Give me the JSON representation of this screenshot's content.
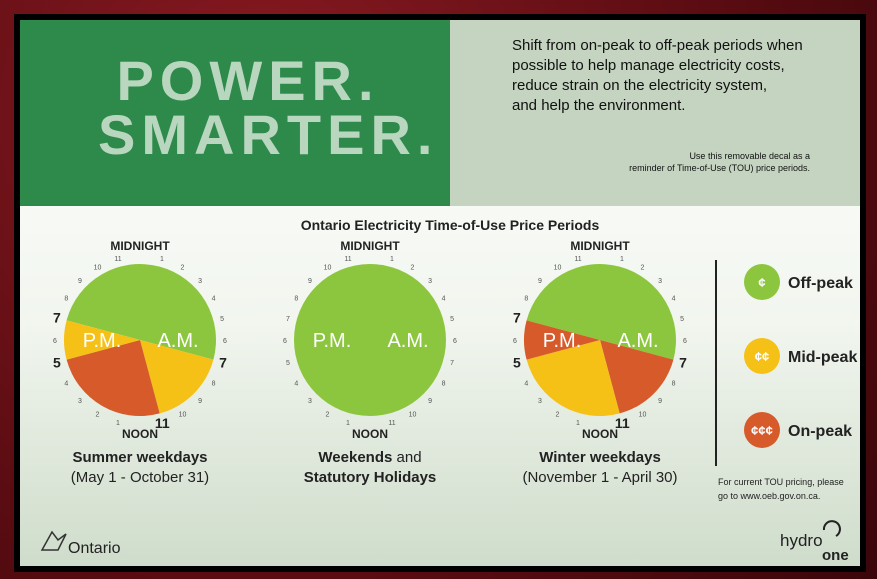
{
  "header": {
    "title_lines": [
      "POWER.",
      "SMARTER."
    ],
    "message": [
      "Shift from on-peak to off-peak periods when",
      "possible to help manage electricity costs,",
      "reduce strain on the electricity system,",
      "and help the environment."
    ],
    "note": [
      "Use this removable decal as a",
      "reminder of Time-of-Use (TOU) price periods."
    ]
  },
  "section_title": "Ontario Electricity Time-of-Use Price Periods",
  "dial": [
    1,
    2,
    3,
    4,
    5,
    6,
    7,
    8,
    9,
    10,
    11
  ],
  "clocks": [
    {
      "top": "MIDNIGHT",
      "bottom": "NOON",
      "left": "P.M.",
      "right": "A.M.",
      "marked_hours": [
        {
          "hour": 7,
          "pm": true
        },
        {
          "hour": 5,
          "pm": true
        },
        {
          "hour": 7,
          "pm": false
        },
        {
          "hour": 11,
          "pm": false
        }
      ],
      "caption": [
        {
          "text": "Summer weekdays",
          "bold": true
        },
        {
          "text": "(May 1 - October 31)",
          "bold": false
        }
      ]
    },
    {
      "top": "MIDNIGHT",
      "bottom": "NOON",
      "left": "P.M.",
      "right": "A.M.",
      "marked_hours": [],
      "caption": [
        {
          "text": "Weekends",
          "bold": true
        },
        {
          "text": "and",
          "bold": false
        },
        {
          "text": "Statutory Holidays",
          "bold": true
        }
      ]
    },
    {
      "top": "MIDNIGHT",
      "bottom": "NOON",
      "left": "P.M.",
      "right": "A.M.",
      "marked_hours": [
        {
          "hour": 7,
          "pm": true
        },
        {
          "hour": 5,
          "pm": true
        },
        {
          "hour": 7,
          "pm": false
        },
        {
          "hour": 11,
          "pm": false
        }
      ],
      "caption": [
        {
          "text": "Winter weekdays",
          "bold": true
        },
        {
          "text": "(November 1 - April 30)",
          "bold": false
        }
      ]
    }
  ],
  "legend": [
    {
      "symbol": "¢",
      "label": "Off-peak"
    },
    {
      "symbol": "¢¢",
      "label": "Mid-peak"
    },
    {
      "symbol": "¢¢¢",
      "label": "On-peak"
    }
  ],
  "footer": {
    "pricing": [
      "For current TOU pricing, please",
      "go to www.oeb.gov.on.ca."
    ],
    "ontario": "Ontario",
    "hydro": "hydro",
    "one": "one"
  }
}
